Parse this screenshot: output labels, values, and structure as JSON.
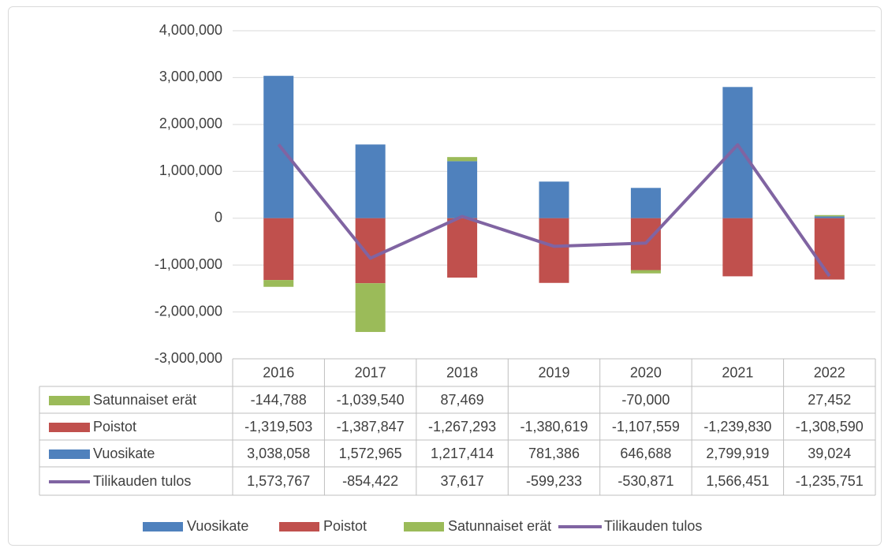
{
  "chart_data": {
    "type": "bar",
    "stacked": true,
    "categories": [
      "2016",
      "2017",
      "2018",
      "2019",
      "2020",
      "2021",
      "2022"
    ],
    "series": [
      {
        "name": "Vuosikate",
        "color": "#4f81bd",
        "type": "bar",
        "values": [
          3038058,
          1572965,
          1217414,
          781386,
          646688,
          2799919,
          39024
        ],
        "value_labels": [
          "3,038,058",
          "1,572,965",
          "1,217,414",
          "781,386",
          "646,688",
          "2,799,919",
          "39,024"
        ]
      },
      {
        "name": "Poistot",
        "color": "#c0504d",
        "type": "bar",
        "values": [
          -1319503,
          -1387847,
          -1267293,
          -1380619,
          -1107559,
          -1239830,
          -1308590
        ],
        "value_labels": [
          "-1,319,503",
          "-1,387,847",
          "-1,267,293",
          "-1,380,619",
          "-1,107,559",
          "-1,239,830",
          "-1,308,590"
        ]
      },
      {
        "name": "Satunnaiset erät",
        "color": "#9bbb59",
        "type": "bar",
        "values": [
          -144788,
          -1039540,
          87469,
          null,
          -70000,
          null,
          27452
        ],
        "value_labels": [
          "-144,788",
          "-1,039,540",
          "87,469",
          null,
          "-70,000",
          null,
          "27,452"
        ]
      },
      {
        "name": "Tilikauden tulos",
        "color": "#8064a2",
        "type": "line",
        "values": [
          1573767,
          -854422,
          37617,
          -599233,
          -530871,
          1566451,
          -1235751
        ],
        "value_labels": [
          "1,573,767",
          "-854,422",
          "37,617",
          "-599,233",
          "-530,871",
          "1,566,451",
          "-1,235,751"
        ]
      }
    ],
    "ylim": [
      -3000000,
      4000000
    ],
    "yticks": [
      {
        "value": -3000000,
        "label": "-3,000,000"
      },
      {
        "value": -2000000,
        "label": "-2,000,000"
      },
      {
        "value": -1000000,
        "label": "-1,000,000"
      },
      0,
      {
        "value": 1000000,
        "label": "1,000,000"
      },
      {
        "value": 2000000,
        "label": "2,000,000"
      },
      {
        "value": 3000000,
        "label": "3,000,000"
      },
      {
        "value": 4000000,
        "label": "4,000,000"
      }
    ],
    "grid": true,
    "legend": "bottom",
    "data_table": true
  }
}
